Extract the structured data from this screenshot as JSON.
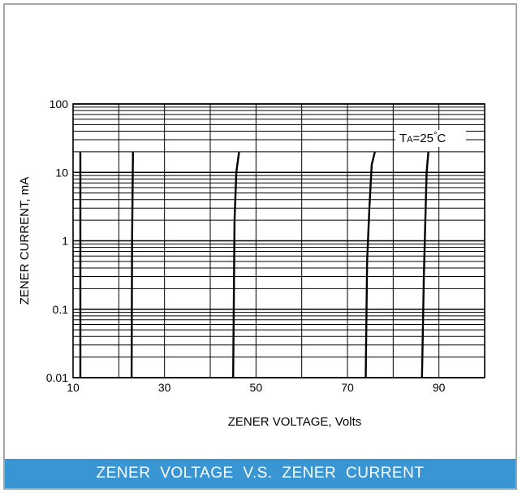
{
  "caption": "ZENER  VOLTAGE  V.S.  ZENER  CURRENT",
  "colors": {
    "caption_bar": "#3a95d3",
    "frame_border": "#a6a6a6",
    "grid": "#000000",
    "curve": "#000000"
  },
  "chart_data": {
    "type": "line",
    "title": "",
    "xlabel": "ZENER VOLTAGE, Volts",
    "ylabel": "ZENER CURRENT, mA",
    "xlim": [
      10,
      100
    ],
    "ylim": [
      0.01,
      100
    ],
    "yscale": "log",
    "grid": true,
    "x_ticks": [
      10,
      30,
      50,
      70,
      90
    ],
    "x_tick_labels": [
      "10",
      "30",
      "50",
      "70",
      "90"
    ],
    "y_ticks": [
      0.01,
      0.1,
      1,
      10,
      100
    ],
    "y_tick_labels": [
      "0.01",
      "0.1",
      "1",
      "10",
      "100"
    ],
    "annotation": {
      "prefix": "T",
      "subscript": "A",
      "suffix": "=25",
      "degree": "°",
      "unit": "C"
    },
    "series": [
      {
        "x": [
          11.6,
          11.6,
          11.6
        ],
        "y": [
          0.01,
          1,
          20
        ]
      },
      {
        "x": [
          22.8,
          22.9,
          23.1
        ],
        "y": [
          0.01,
          1,
          20
        ]
      },
      {
        "x": [
          45.0,
          45.3,
          45.7,
          46.3
        ],
        "y": [
          0.01,
          2,
          10,
          20
        ]
      },
      {
        "x": [
          74.0,
          74.3,
          74.8,
          75.3,
          76.0
        ],
        "y": [
          0.01,
          0.5,
          3,
          13,
          20
        ]
      },
      {
        "x": [
          86.3,
          86.7,
          87.3,
          87.7
        ],
        "y": [
          0.01,
          0.3,
          10,
          20
        ]
      }
    ]
  }
}
